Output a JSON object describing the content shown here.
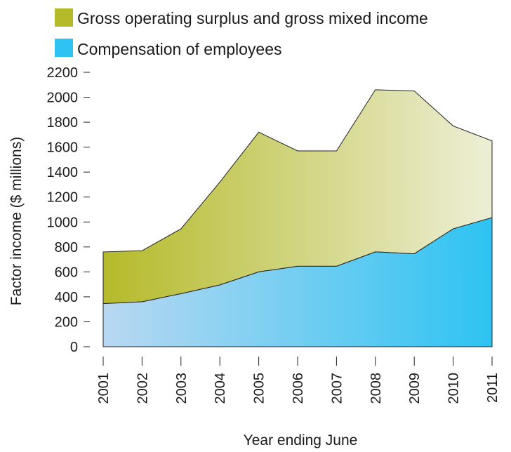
{
  "chart_data": {
    "type": "area",
    "stacked": true,
    "xlabel": "Year ending June",
    "ylabel": "Factor income ($ millions)",
    "ylim": [
      0,
      2200
    ],
    "yticks": [
      0,
      200,
      400,
      600,
      800,
      1000,
      1200,
      1400,
      1600,
      1800,
      2000,
      2200
    ],
    "x": [
      "2001",
      "2002",
      "2003",
      "2004",
      "2005",
      "2006",
      "2007",
      "2008",
      "2009",
      "2010",
      "2011"
    ],
    "legend_position": "top-left",
    "series": [
      {
        "name": "Compensation of employees",
        "values": [
          345,
          360,
          425,
          495,
          600,
          645,
          645,
          760,
          745,
          945,
          1035
        ],
        "color_start": "#b9d8f2",
        "color_end": "#2ec3f2"
      },
      {
        "name": "Gross operating surplus and gross mixed income",
        "values": [
          415,
          410,
          520,
          825,
          1120,
          925,
          925,
          1300,
          1305,
          825,
          615
        ],
        "color_start": "#b5ba2a",
        "color_end": "#edefd6"
      }
    ]
  }
}
